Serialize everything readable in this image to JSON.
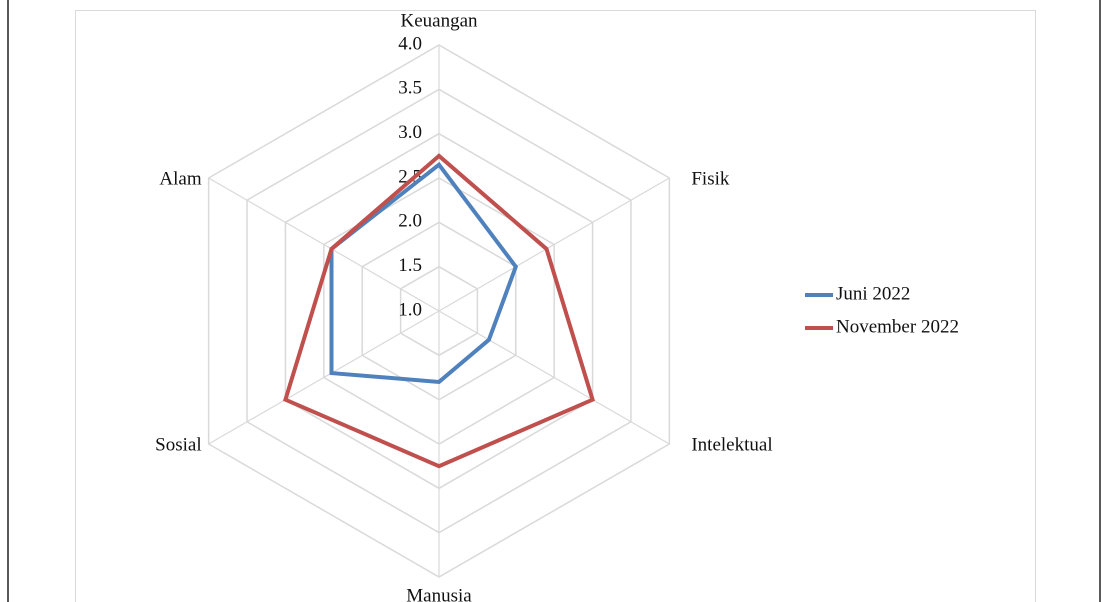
{
  "chart_data": {
    "type": "radar",
    "categories": [
      "Keuangan",
      "Fisik",
      "Intelektual",
      "Manusia",
      "Sosial",
      "Alam"
    ],
    "series": [
      {
        "name": "Juni 2022",
        "color": "#4f81bd",
        "values": [
          2.65,
          2.0,
          1.65,
          1.8,
          2.4,
          2.4
        ]
      },
      {
        "name": "November 2022",
        "color": "#c0504d",
        "values": [
          2.75,
          2.4,
          3.0,
          2.75,
          3.0,
          2.4
        ]
      }
    ],
    "rlim": [
      1.0,
      4.0
    ],
    "rticks": [
      {
        "value": 1.0,
        "label": "1.0"
      },
      {
        "value": 1.5,
        "label": "1.5"
      },
      {
        "value": 2.0,
        "label": "2.0"
      },
      {
        "value": 2.5,
        "label": "2.5"
      },
      {
        "value": 3.0,
        "label": "3.0"
      },
      {
        "value": 3.5,
        "label": "3.5"
      },
      {
        "value": 4.0,
        "label": "4.0"
      }
    ],
    "grid": true,
    "legend": "right"
  }
}
